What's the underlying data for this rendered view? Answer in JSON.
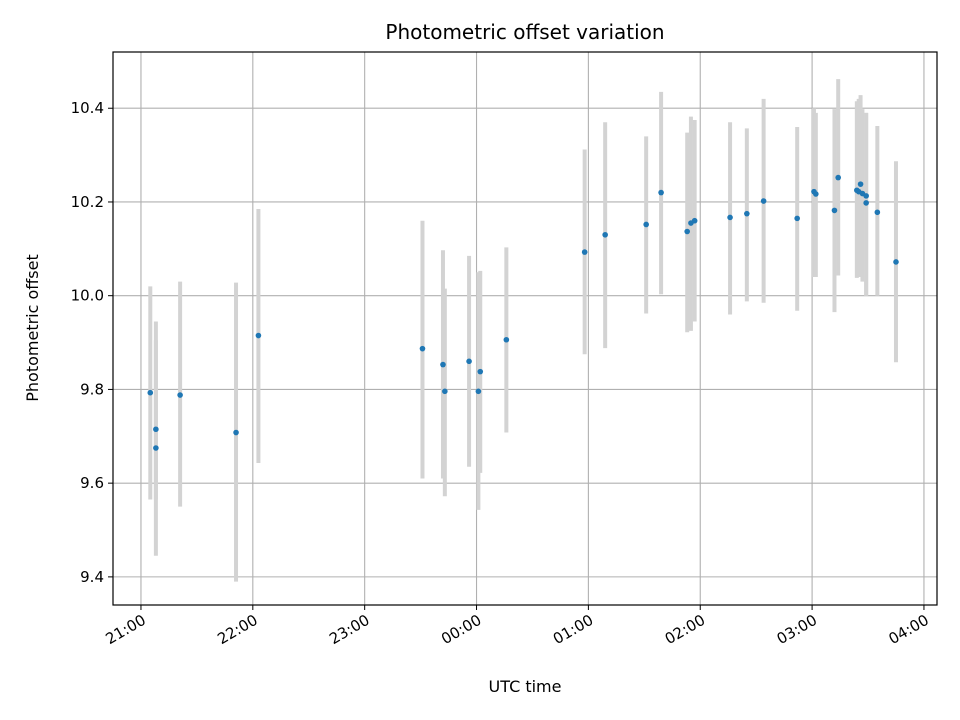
{
  "chart_data": {
    "type": "scatter",
    "title": "Photometric offset variation",
    "xlabel": "UTC time",
    "ylabel": "Photometric offset",
    "x_axis": {
      "kind": "time",
      "range": [
        "20:45",
        "04:07"
      ],
      "ticks": [
        "21:00",
        "22:00",
        "23:00",
        "00:00",
        "01:00",
        "02:00",
        "03:00",
        "04:00"
      ],
      "tick_label_rotation_deg": 30
    },
    "y_axis": {
      "range": [
        9.34,
        10.52
      ],
      "ticks": [
        9.4,
        9.6,
        9.8,
        10.0,
        10.2,
        10.4
      ],
      "tick_labels": [
        "9.4",
        "9.6",
        "9.8",
        "10.0",
        "10.2",
        "10.4"
      ]
    },
    "grid": true,
    "colors": {
      "point": "#1f77b4",
      "errorbar": "#d3d3d3",
      "grid": "#b0b0b0"
    },
    "points": [
      {
        "t": "21:05",
        "y": 9.793,
        "lo": 9.565,
        "hi": 10.02
      },
      {
        "t": "21:08",
        "y": 9.715,
        "lo": 9.565,
        "hi": 9.945
      },
      {
        "t": "21:08",
        "y": 9.675,
        "lo": 9.445,
        "hi": 9.905
      },
      {
        "t": "21:21",
        "y": 9.788,
        "lo": 9.55,
        "hi": 10.03
      },
      {
        "t": "21:51",
        "y": 9.708,
        "lo": 9.39,
        "hi": 10.028
      },
      {
        "t": "22:03",
        "y": 9.915,
        "lo": 9.643,
        "hi": 10.185
      },
      {
        "t": "23:31",
        "y": 9.887,
        "lo": 9.61,
        "hi": 10.16
      },
      {
        "t": "23:42",
        "y": 9.853,
        "lo": 9.61,
        "hi": 10.097
      },
      {
        "t": "23:43",
        "y": 9.796,
        "lo": 9.572,
        "hi": 10.015
      },
      {
        "t": "23:56",
        "y": 9.86,
        "lo": 9.635,
        "hi": 10.085
      },
      {
        "t": "00:01",
        "y": 9.796,
        "lo": 9.543,
        "hi": 10.05
      },
      {
        "t": "00:02",
        "y": 9.838,
        "lo": 9.622,
        "hi": 10.053
      },
      {
        "t": "00:16",
        "y": 9.906,
        "lo": 9.708,
        "hi": 10.103
      },
      {
        "t": "00:58",
        "y": 10.093,
        "lo": 9.875,
        "hi": 10.312
      },
      {
        "t": "01:09",
        "y": 10.13,
        "lo": 9.888,
        "hi": 10.37
      },
      {
        "t": "01:31",
        "y": 10.152,
        "lo": 9.962,
        "hi": 10.34
      },
      {
        "t": "01:39",
        "y": 10.22,
        "lo": 10.003,
        "hi": 10.435
      },
      {
        "t": "01:53",
        "y": 10.137,
        "lo": 9.922,
        "hi": 10.348
      },
      {
        "t": "01:55",
        "y": 10.155,
        "lo": 9.925,
        "hi": 10.382
      },
      {
        "t": "01:57",
        "y": 10.16,
        "lo": 9.945,
        "hi": 10.375
      },
      {
        "t": "02:16",
        "y": 10.167,
        "lo": 9.96,
        "hi": 10.37
      },
      {
        "t": "02:25",
        "y": 10.175,
        "lo": 9.988,
        "hi": 10.357
      },
      {
        "t": "02:34",
        "y": 10.202,
        "lo": 9.985,
        "hi": 10.42
      },
      {
        "t": "02:52",
        "y": 10.165,
        "lo": 9.968,
        "hi": 10.36
      },
      {
        "t": "03:01",
        "y": 10.222,
        "lo": 10.04,
        "hi": 10.4
      },
      {
        "t": "03:02",
        "y": 10.217,
        "lo": 10.04,
        "hi": 10.39
      },
      {
        "t": "03:12",
        "y": 10.182,
        "lo": 9.965,
        "hi": 10.398
      },
      {
        "t": "03:14",
        "y": 10.252,
        "lo": 10.043,
        "hi": 10.462
      },
      {
        "t": "03:24",
        "y": 10.225,
        "lo": 10.038,
        "hi": 10.415
      },
      {
        "t": "03:25",
        "y": 10.222,
        "lo": 10.04,
        "hi": 10.42
      },
      {
        "t": "03:26",
        "y": 10.238,
        "lo": 10.05,
        "hi": 10.428
      },
      {
        "t": "03:27",
        "y": 10.218,
        "lo": 10.03,
        "hi": 10.398
      },
      {
        "t": "03:29",
        "y": 10.213,
        "lo": 10.0,
        "hi": 10.39
      },
      {
        "t": "03:29",
        "y": 10.198,
        "lo": 10.0,
        "hi": 10.39
      },
      {
        "t": "03:35",
        "y": 10.178,
        "lo": 10.0,
        "hi": 10.362
      },
      {
        "t": "03:45",
        "y": 10.072,
        "lo": 9.858,
        "hi": 10.287
      }
    ]
  }
}
